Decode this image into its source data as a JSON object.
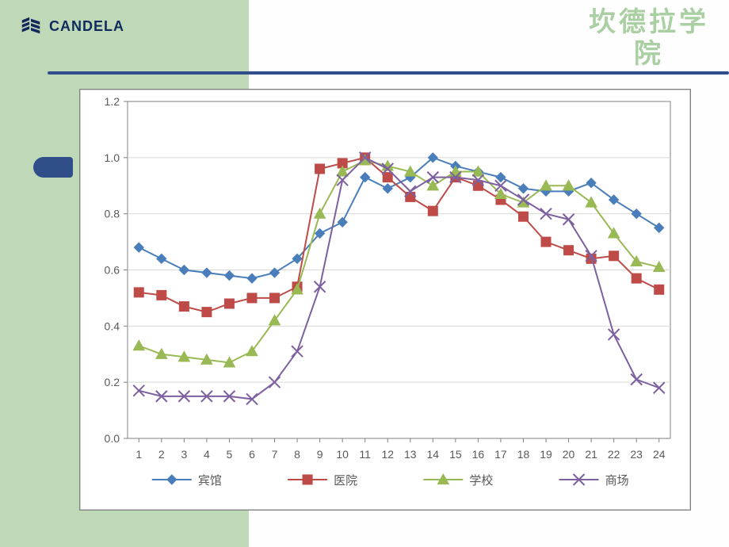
{
  "branding": {
    "logo_text": "CANDELA",
    "logo_color": "#12275a",
    "watermark_line1": "坎德拉学",
    "watermark_line2": "院",
    "watermark_color": "#a9cfa2"
  },
  "layout": {
    "left_panel_color": "#bfd9b8",
    "accent_bar_color": "#2f4e8a",
    "page_bg": "#fefefe"
  },
  "chart": {
    "type": "line",
    "background_color": "#ffffff",
    "plot_bg": "#ffffff",
    "border_color": "#808080",
    "grid_color": "#d9d9d9",
    "axis_color": "#808080",
    "xlim": [
      1,
      24
    ],
    "ylim": [
      0.0,
      1.2
    ],
    "ytick_step": 0.2,
    "x_categories": [
      "1",
      "2",
      "3",
      "4",
      "5",
      "6",
      "7",
      "8",
      "9",
      "10",
      "11",
      "12",
      "13",
      "14",
      "15",
      "16",
      "17",
      "18",
      "19",
      "20",
      "21",
      "22",
      "23",
      "24"
    ],
    "y_ticks": [
      "0.0",
      "0.2",
      "0.4",
      "0.6",
      "0.8",
      "1.0",
      "1.2"
    ],
    "tick_fontsize": 14,
    "tick_color": "#595959",
    "series": [
      {
        "name": "宾馆",
        "color": "#4a7ebb",
        "marker": "diamond",
        "line_width": 2,
        "marker_size": 6,
        "values": [
          0.68,
          0.64,
          0.6,
          0.59,
          0.58,
          0.57,
          0.59,
          0.64,
          0.73,
          0.77,
          0.93,
          0.89,
          0.93,
          1.0,
          0.97,
          0.95,
          0.93,
          0.89,
          0.88,
          0.88,
          0.91,
          0.85,
          0.8,
          0.75
        ]
      },
      {
        "name": "医院",
        "color": "#be4b48",
        "marker": "square",
        "line_width": 2,
        "marker_size": 6,
        "values": [
          0.52,
          0.51,
          0.47,
          0.45,
          0.48,
          0.5,
          0.5,
          0.54,
          0.96,
          0.98,
          1.0,
          0.93,
          0.86,
          0.81,
          0.93,
          0.9,
          0.85,
          0.79,
          0.7,
          0.67,
          0.64,
          0.65,
          0.57,
          0.53
        ]
      },
      {
        "name": "学校",
        "color": "#98b954",
        "marker": "triangle",
        "line_width": 2,
        "marker_size": 7,
        "values": [
          0.33,
          0.3,
          0.29,
          0.28,
          0.27,
          0.31,
          0.42,
          0.53,
          0.8,
          0.95,
          0.99,
          0.97,
          0.95,
          0.9,
          0.95,
          0.95,
          0.87,
          0.84,
          0.9,
          0.9,
          0.84,
          0.73,
          0.63,
          0.61
        ]
      },
      {
        "name": "商场",
        "color": "#7d60a0",
        "marker": "cross",
        "line_width": 2,
        "marker_size": 7,
        "values": [
          0.17,
          0.15,
          0.15,
          0.15,
          0.15,
          0.14,
          0.2,
          0.31,
          0.54,
          0.92,
          1.0,
          0.96,
          0.88,
          0.93,
          0.93,
          0.92,
          0.9,
          0.85,
          0.8,
          0.78,
          0.65,
          0.37,
          0.21,
          0.18
        ]
      }
    ],
    "legend": {
      "position": "bottom",
      "fontsize": 15,
      "text_color": "#595959"
    }
  }
}
